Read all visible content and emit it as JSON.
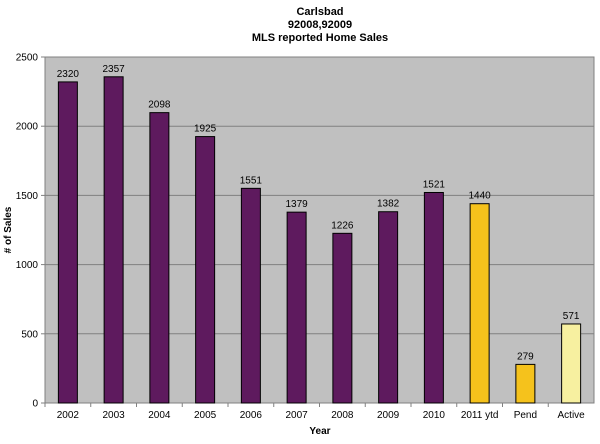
{
  "chart_data": {
    "type": "bar",
    "title": [
      "Carlsbad",
      "92008,92009",
      "MLS reported Home Sales"
    ],
    "xlabel": "Year",
    "ylabel": "# of Sales",
    "ylim": [
      0,
      2500
    ],
    "yticks": [
      0,
      500,
      1000,
      1500,
      2000,
      2500
    ],
    "grid": true,
    "categories": [
      "2002",
      "2003",
      "2004",
      "2005",
      "2006",
      "2007",
      "2008",
      "2009",
      "2010",
      "2011 ytd",
      "Pend",
      "Active"
    ],
    "values": [
      2320,
      2357,
      2098,
      1925,
      1551,
      1379,
      1226,
      1382,
      1521,
      1440,
      279,
      571
    ],
    "colors": [
      "#5e1a5e",
      "#5e1a5e",
      "#5e1a5e",
      "#5e1a5e",
      "#5e1a5e",
      "#5e1a5e",
      "#5e1a5e",
      "#5e1a5e",
      "#5e1a5e",
      "#f5c21c",
      "#f5c21c",
      "#f7f0a0"
    ],
    "plot_bg": "#c0c0c0"
  }
}
